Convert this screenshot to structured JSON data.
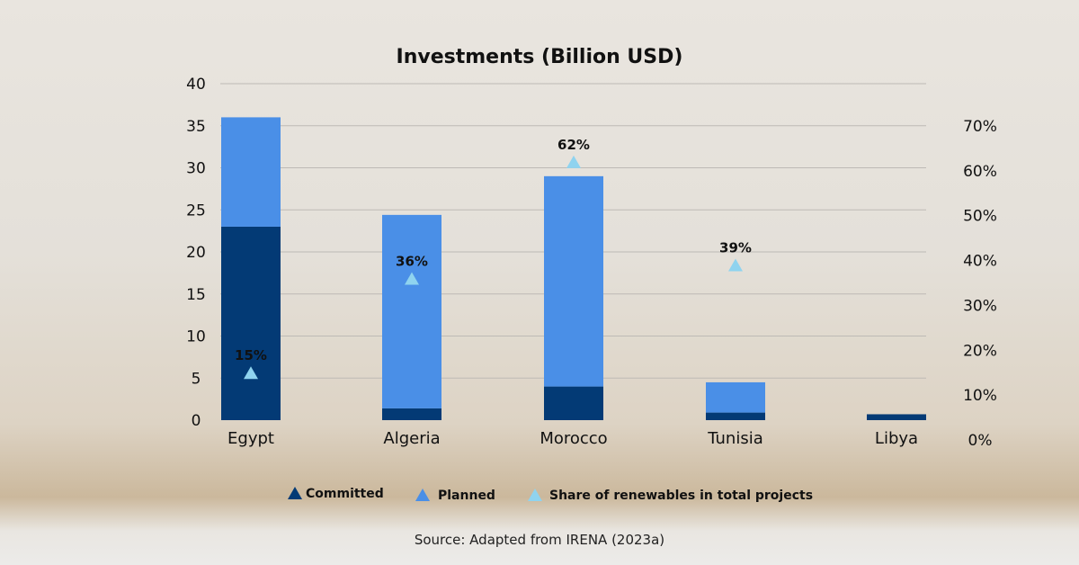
{
  "chart_data": {
    "type": "bar",
    "stacked": true,
    "title": "Investments (Billion USD)",
    "categories": [
      "Egypt",
      "Algeria",
      "Morocco",
      "Tunisia",
      "Libya"
    ],
    "series": [
      {
        "name": "Committed",
        "color": "#033a75",
        "values": [
          23,
          1.4,
          4,
          0.9,
          0.7
        ]
      },
      {
        "name": "Planned",
        "color": "#4a8fe7",
        "values": [
          13,
          23,
          25,
          3.6,
          0
        ]
      }
    ],
    "secondary_series": {
      "name": "Share of renewables in total projects",
      "type": "scatter",
      "marker": "triangle",
      "color": "#8fd3ef",
      "values": [
        15,
        36,
        62,
        39,
        null
      ],
      "labels": [
        "15%",
        "36%",
        "62%",
        "39%",
        ""
      ]
    },
    "ylim": [
      0,
      40
    ],
    "yticks": [
      "0",
      "5",
      "10",
      "15",
      "20",
      "25",
      "30",
      "35",
      "40"
    ],
    "y2lim": [
      0,
      80
    ],
    "y2ticks": [
      "0%",
      "10%",
      "20%",
      "30%",
      "40%",
      "50%",
      "60%",
      "70%"
    ],
    "legend_position": "bottom",
    "source": "Source: Adapted from IRENA (2023a)"
  }
}
